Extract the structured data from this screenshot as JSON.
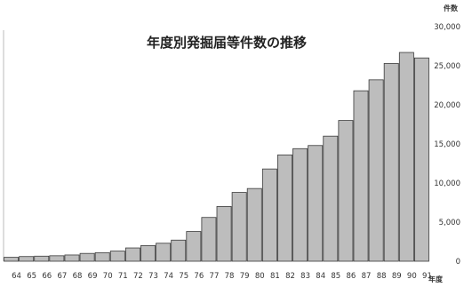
{
  "chart_data": {
    "type": "bar",
    "title": "年度別発掘届等件数の推移",
    "ylabel": "件数",
    "xlabel": "年度",
    "ylim": [
      0,
      30000
    ],
    "yticks": [
      "0",
      "5,000",
      "10,000",
      "15,000",
      "20,000",
      "25,000",
      "30,000"
    ],
    "ytick_values": [
      0,
      5000,
      10000,
      15000,
      20000,
      25000,
      30000
    ],
    "categories": [
      "64",
      "65",
      "66",
      "67",
      "68",
      "69",
      "70",
      "71",
      "72",
      "73",
      "74",
      "75",
      "76",
      "77",
      "78",
      "79",
      "80",
      "81",
      "82",
      "83",
      "84",
      "85",
      "86",
      "87",
      "88",
      "89",
      "90",
      "91"
    ],
    "values": [
      500,
      600,
      650,
      700,
      800,
      1000,
      1100,
      1300,
      1700,
      2000,
      2300,
      2700,
      3800,
      5600,
      7000,
      8800,
      9300,
      11800,
      13600,
      14400,
      14800,
      16000,
      18000,
      21800,
      23200,
      25300,
      26700,
      26000
    ],
    "grid": false,
    "legend": "none"
  }
}
